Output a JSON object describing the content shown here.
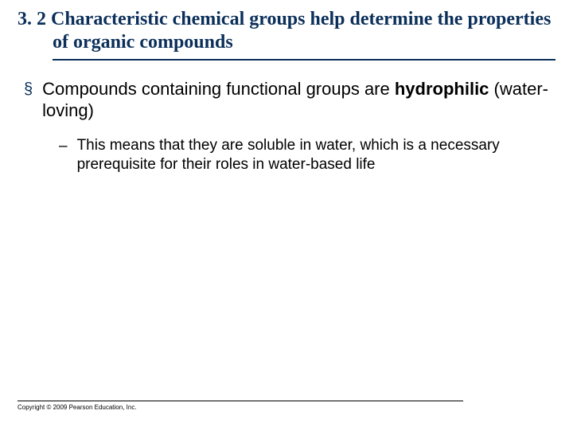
{
  "colors": {
    "heading": "#0b2f5a",
    "bullet_marker": "#0b2f5a",
    "text": "#000000",
    "background": "#ffffff",
    "rule": "#0b2f5a",
    "footer_rule": "#000000"
  },
  "typography": {
    "heading_font": "Georgia, serif",
    "body_font": "Verdana, sans-serif",
    "heading_size_pt": 18,
    "body_size_pt": 16,
    "sub_size_pt": 14,
    "footer_size_pt": 6
  },
  "heading": {
    "section_number": "3. 2",
    "title_rest": "Characteristic chemical groups help determine the properties of organic compounds"
  },
  "bullets": {
    "level1": {
      "marker": "§",
      "pre": "Compounds containing functional groups are ",
      "bold": "hydrophilic",
      "post": " (water-loving)"
    },
    "level2": {
      "marker": "–",
      "text": "This means that they are soluble in water, which is a necessary prerequisite for their roles in water-based life"
    }
  },
  "footer": {
    "text": "Copyright © 2009 Pearson Education, Inc."
  }
}
